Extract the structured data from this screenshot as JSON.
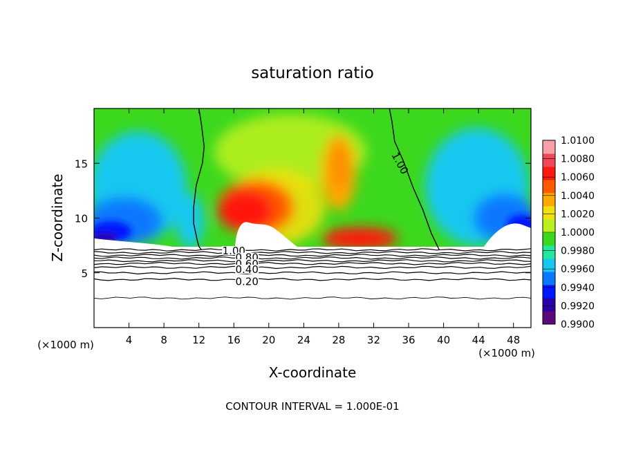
{
  "chart_data": {
    "type": "heatmap",
    "title": "saturation ratio",
    "xlabel": "X-coordinate",
    "ylabel": "Z-coordinate",
    "x_unit": "(×1000 m)",
    "xlim": [
      0,
      50
    ],
    "ylim": [
      0,
      20
    ],
    "x_ticks": [
      4,
      8,
      12,
      16,
      20,
      24,
      28,
      32,
      36,
      40,
      44,
      48
    ],
    "y_ticks": [
      5,
      10,
      15
    ],
    "footer": "CONTOUR INTERVAL = 1.000E-01",
    "colorbar": {
      "min": 0.99,
      "max": 1.01,
      "labels": [
        "1.0100",
        "1.0080",
        "1.0060",
        "1.0040",
        "1.0020",
        "1.0000",
        "0.9980",
        "0.9960",
        "0.9940",
        "0.9920",
        "0.9900"
      ],
      "colors": [
        "#5b0a7a",
        "#2a00a8",
        "#0018ff",
        "#0a78ff",
        "#16c8f0",
        "#20e8a0",
        "#3cd81e",
        "#b8f020",
        "#f0e010",
        "#ffa800",
        "#ff5a00",
        "#ff1810",
        "#f04858",
        "#f8a0a8"
      ]
    },
    "contour_labels": [
      {
        "text": "1.00",
        "x": 35.0,
        "z": 15.0
      },
      {
        "text": "1.00",
        "x": 16.0,
        "z": 7.0
      },
      {
        "text": "0.80",
        "x": 17.5,
        "z": 6.4
      },
      {
        "text": "0.60",
        "x": 17.5,
        "z": 5.8
      },
      {
        "text": "0.40",
        "x": 17.5,
        "z": 5.3
      },
      {
        "text": "0.20",
        "x": 17.5,
        "z": 4.2
      }
    ],
    "contour_lines": [
      {
        "level": 1.0,
        "x": [
          12.0,
          12.3,
          12.6,
          12.4,
          11.7,
          11.4,
          11.4,
          11.8,
          12.0,
          12.3
        ],
        "z": [
          20.0,
          18.5,
          16.5,
          15.0,
          13.0,
          11.0,
          9.5,
          8.0,
          7.4,
          7.1
        ]
      },
      {
        "level": 1.0,
        "x": [
          33.8,
          34.1,
          34.4,
          35.4,
          36.5,
          37.6,
          38.6,
          39.5
        ],
        "z": [
          20.0,
          18.8,
          17.0,
          15.2,
          12.8,
          10.8,
          8.6,
          7.1
        ]
      }
    ],
    "ground_contours": [
      {
        "z": 7.1
      },
      {
        "z": 6.85
      },
      {
        "z": 6.6
      },
      {
        "z": 6.35
      },
      {
        "z": 6.1
      },
      {
        "z": 5.85
      },
      {
        "z": 5.5
      },
      {
        "z": 5.0
      },
      {
        "z": 4.4
      },
      {
        "z": 2.7
      }
    ]
  }
}
